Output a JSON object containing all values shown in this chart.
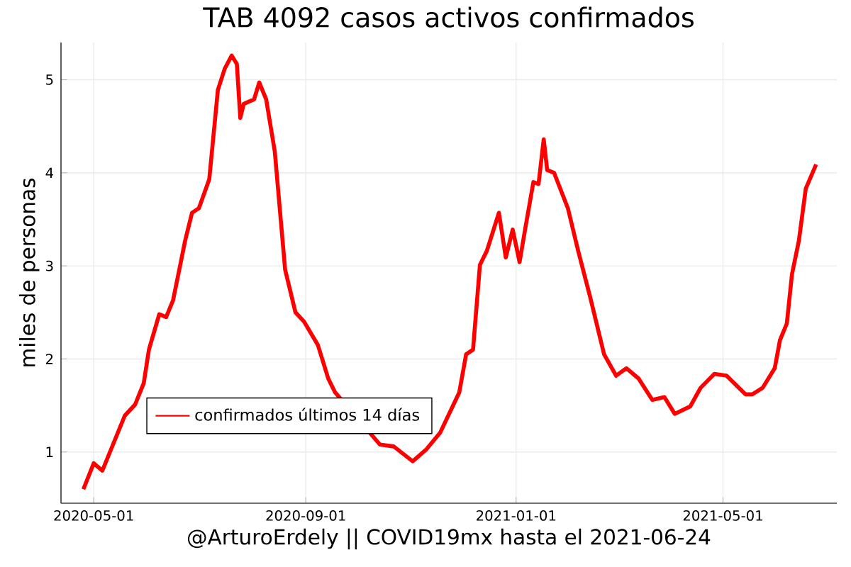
{
  "chart_data": {
    "type": "line",
    "title": "TAB 4092 casos activos confirmados",
    "xlabel": "@ArturoErdely || COVID19mx hasta el 2021-06-24",
    "ylabel": "miles de personas",
    "x": [
      "2020-04-25",
      "2020-05-01",
      "2020-05-06",
      "2020-05-19",
      "2020-05-25",
      "2020-05-30",
      "2020-06-02",
      "2020-06-08",
      "2020-06-12",
      "2020-06-16",
      "2020-06-23",
      "2020-06-27",
      "2020-07-01",
      "2020-07-07",
      "2020-07-12",
      "2020-07-16",
      "2020-07-20",
      "2020-07-23",
      "2020-07-25",
      "2020-07-27",
      "2020-08-02",
      "2020-08-05",
      "2020-08-09",
      "2020-08-14",
      "2020-08-20",
      "2020-08-26",
      "2020-08-31",
      "2020-09-08",
      "2020-09-14",
      "2020-09-18",
      "2020-10-14",
      "2020-10-22",
      "2020-11-02",
      "2020-11-10",
      "2020-11-18",
      "2020-11-29",
      "2020-12-03",
      "2020-12-07",
      "2020-12-11",
      "2020-12-15",
      "2020-12-22",
      "2020-12-26",
      "2020-12-30",
      "2021-01-03",
      "2021-01-06",
      "2021-01-11",
      "2021-01-14",
      "2021-01-17",
      "2021-01-19",
      "2021-01-23",
      "2021-01-31",
      "2021-02-06",
      "2021-02-13",
      "2021-02-21",
      "2021-02-28",
      "2021-03-06",
      "2021-03-13",
      "2021-03-21",
      "2021-03-28",
      "2021-04-03",
      "2021-04-12",
      "2021-04-18",
      "2021-04-26",
      "2021-05-03",
      "2021-05-14",
      "2021-05-18",
      "2021-05-24",
      "2021-05-31",
      "2021-06-03",
      "2021-06-07",
      "2021-06-10",
      "2021-06-14",
      "2021-06-18",
      "2021-06-24"
    ],
    "series": [
      {
        "name": "confirmados últimos 14 días",
        "color": "#ff0000",
        "values": [
          0.6,
          0.88,
          0.8,
          1.39,
          1.51,
          1.74,
          2.1,
          2.48,
          2.45,
          2.63,
          3.27,
          3.57,
          3.62,
          3.93,
          4.89,
          5.12,
          5.26,
          5.17,
          4.59,
          4.74,
          4.79,
          4.97,
          4.79,
          4.23,
          2.96,
          2.5,
          2.4,
          2.15,
          1.79,
          1.64,
          1.08,
          1.06,
          0.9,
          1.03,
          1.21,
          1.64,
          2.05,
          2.1,
          3.01,
          3.16,
          3.57,
          3.09,
          3.39,
          3.04,
          3.37,
          3.9,
          3.88,
          4.36,
          4.03,
          4.0,
          3.62,
          3.16,
          2.66,
          2.05,
          1.82,
          1.9,
          1.79,
          1.56,
          1.59,
          1.41,
          1.49,
          1.69,
          1.84,
          1.82,
          1.62,
          1.62,
          1.69,
          1.9,
          2.2,
          2.38,
          2.91,
          3.27,
          3.83,
          4.09
        ]
      }
    ],
    "xlim": [
      "2020-04-12",
      "2021-07-06"
    ],
    "ylim": [
      0.45,
      5.4
    ],
    "xticks": [
      "2020-05-01",
      "2020-09-01",
      "2021-01-01",
      "2021-05-01"
    ],
    "yticks": [
      1,
      2,
      3,
      4,
      5
    ],
    "grid": true,
    "legend": "bottom left"
  }
}
